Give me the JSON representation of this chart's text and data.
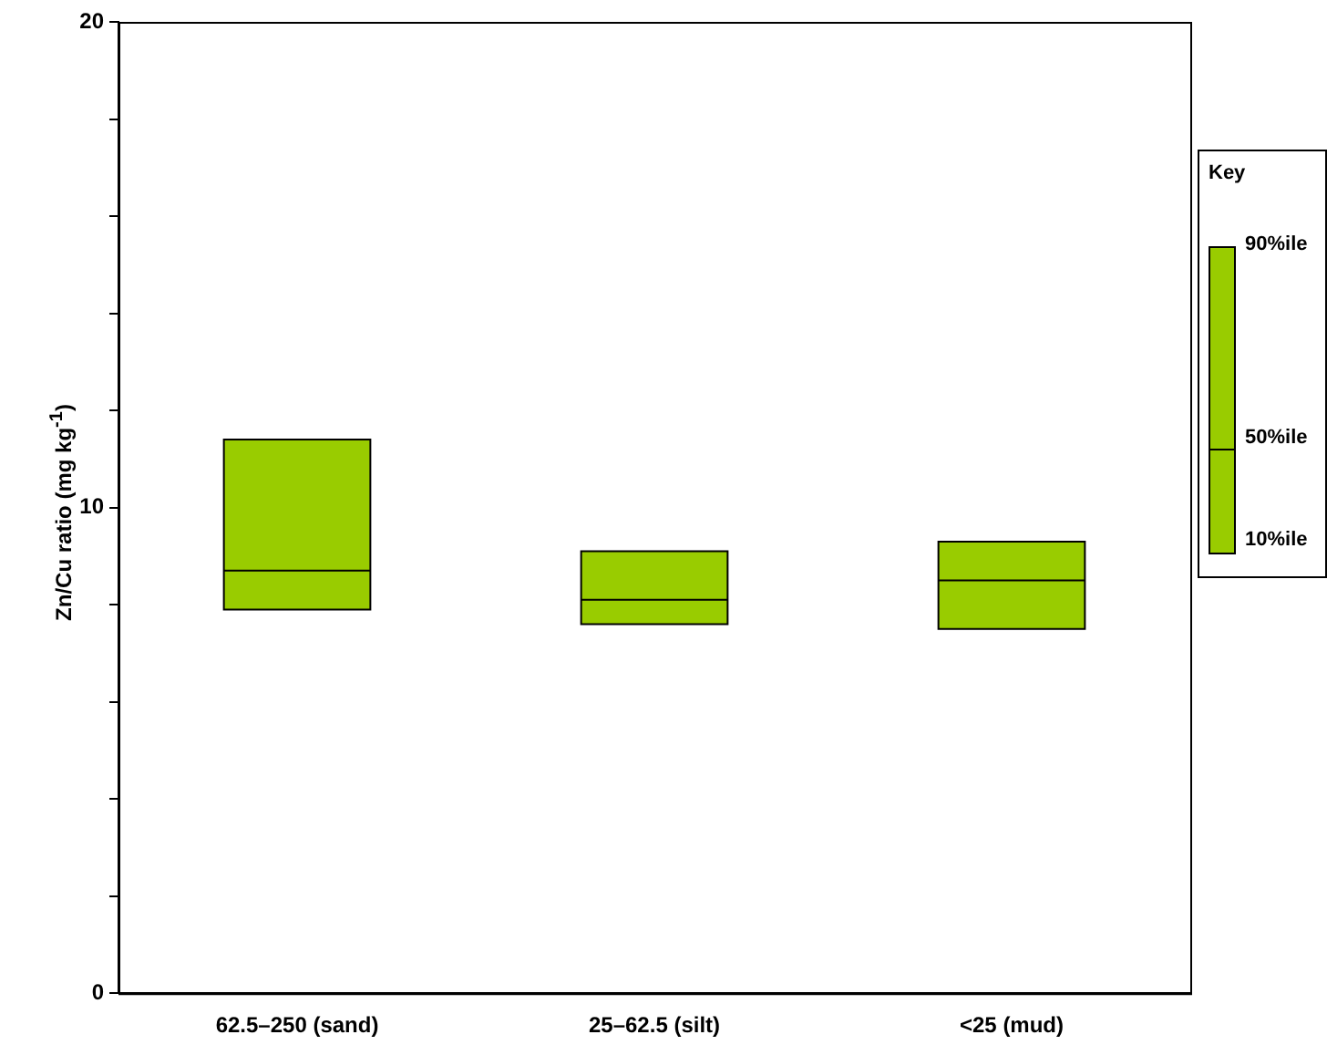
{
  "chart_data": {
    "type": "box",
    "ylabel": "Zn/Cu ratio (mg kg$^{-1}$)",
    "categories": [
      "62.5–250 (sand)",
      "25–62.5 (silt)",
      "<25 (mud)"
    ],
    "color": "#99cc00",
    "boxes": [
      {
        "low": 7.9,
        "q1": 7.9,
        "median": 8.7,
        "q3": 11.4,
        "high": 11.4
      },
      {
        "low": 7.6,
        "q1": 7.6,
        "median": 8.1,
        "q3": 9.1,
        "high": 9.1
      },
      {
        "low": 7.5,
        "q1": 7.5,
        "median": 8.5,
        "q3": 9.3,
        "high": 9.3
      }
    ],
    "ylim": [
      0,
      20
    ],
    "yticks": [
      0,
      {
        "value": 2,
        "label": null
      },
      {
        "value": 4,
        "label": null
      },
      {
        "value": 6,
        "label": null
      },
      {
        "value": 8,
        "label": null
      },
      10,
      {
        "value": 12,
        "label": null
      },
      {
        "value": 14,
        "label": null
      },
      {
        "value": 16,
        "label": null
      },
      {
        "value": 18,
        "label": null
      },
      20
    ],
    "grid": false,
    "legend": false,
    "annotations": [
      "Key",
      "90%ile",
      "50%ile",
      "10%ile"
    ]
  }
}
